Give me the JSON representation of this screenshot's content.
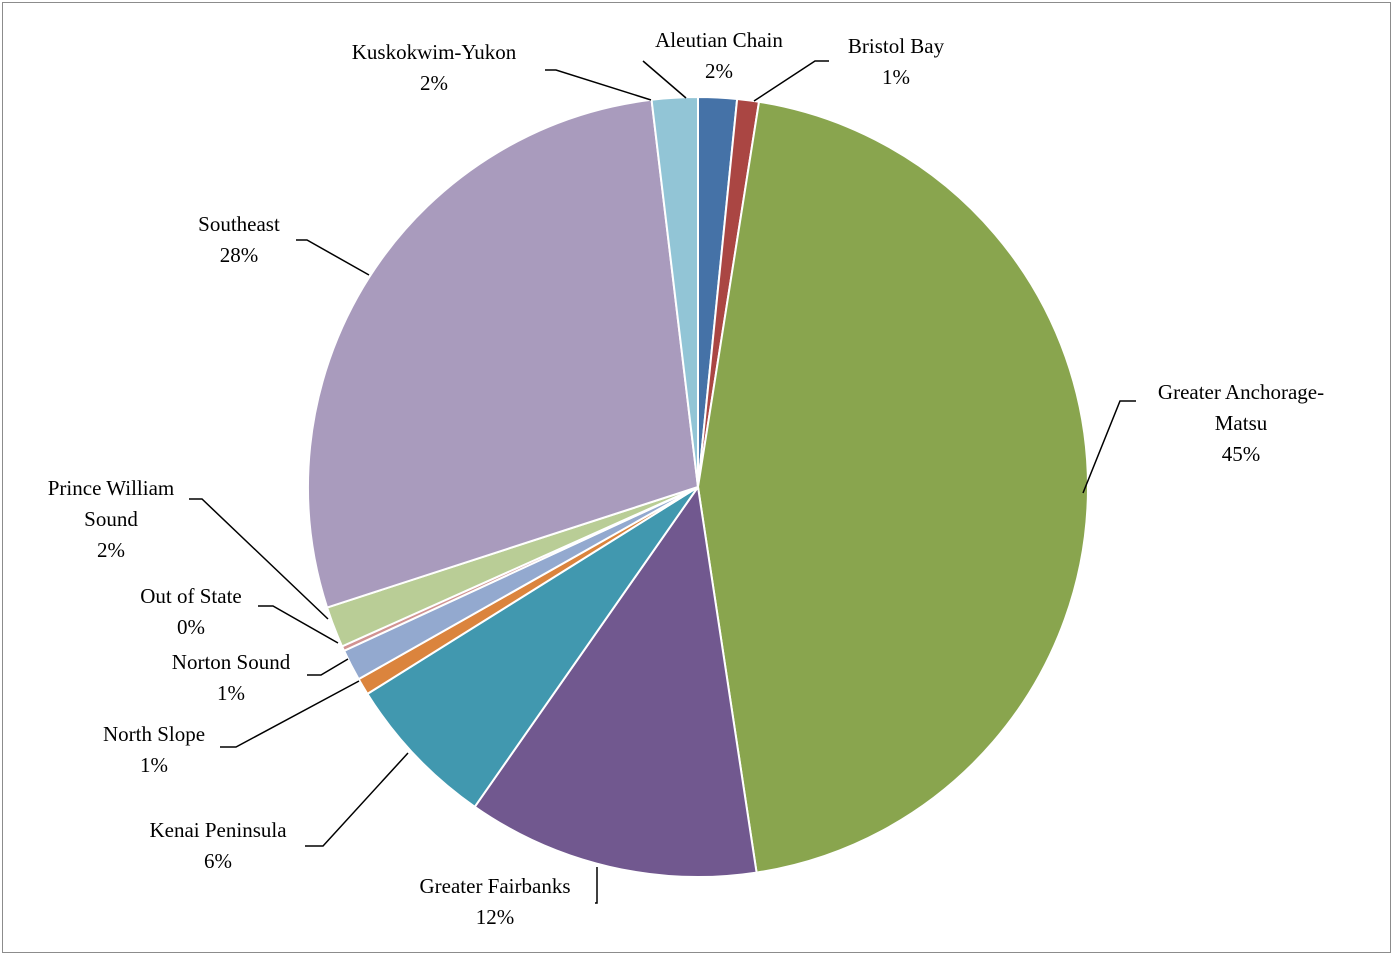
{
  "chart_data": {
    "type": "pie",
    "title": "",
    "start_angle_deg": -90,
    "direction": "clockwise",
    "slices": [
      {
        "name": "Aleutian Chain",
        "pct_label": "2%",
        "value": 1.6,
        "color": "#4572a7"
      },
      {
        "name": "Bristol Bay",
        "pct_label": "1%",
        "value": 0.9,
        "color": "#aa4643"
      },
      {
        "name": "Greater Anchorage-Matsu",
        "pct_label": "45%",
        "value": 45.1,
        "color": "#89a54e"
      },
      {
        "name": "Greater Fairbanks",
        "pct_label": "12%",
        "value": 12.1,
        "color": "#71588f"
      },
      {
        "name": "Kenai Peninsula",
        "pct_label": "6%",
        "value": 6.4,
        "color": "#4198af"
      },
      {
        "name": "North Slope",
        "pct_label": "1%",
        "value": 0.7,
        "color": "#db843d"
      },
      {
        "name": "Norton Sound",
        "pct_label": "1%",
        "value": 1.3,
        "color": "#93a9cf"
      },
      {
        "name": "Out of State",
        "pct_label": "0%",
        "value": 0.2,
        "color": "#d19392"
      },
      {
        "name": "Prince William Sound",
        "pct_label": "2%",
        "value": 1.7,
        "color": "#b9cd96"
      },
      {
        "name": "Southeast",
        "pct_label": "28%",
        "value": 28.1,
        "color": "#a99bbd"
      },
      {
        "name": "Kuskokwim-Yukon",
        "pct_label": "2%",
        "value": 1.9,
        "color": "#92c5d6"
      }
    ]
  }
}
